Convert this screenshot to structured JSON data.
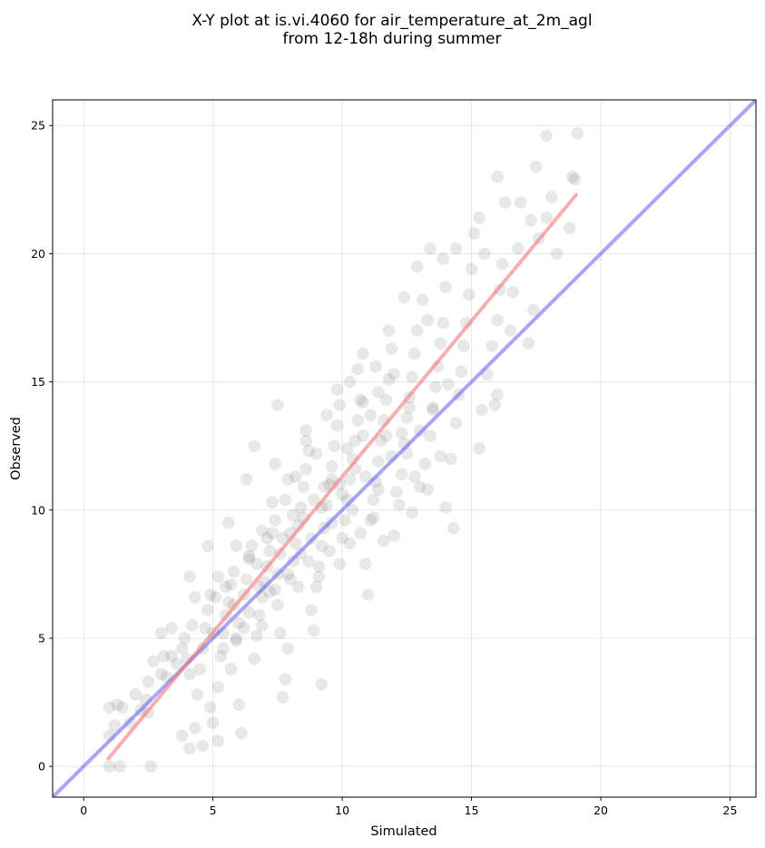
{
  "chart_data": {
    "type": "scatter",
    "title": [
      "X-Y plot at is.vi.4060 for air_temperature_at_2m_agl",
      "from 12-18h during summer"
    ],
    "xlabel": "Simulated",
    "ylabel": "Observed",
    "xlim": [
      -1.2,
      26
    ],
    "ylim": [
      -1.2,
      26
    ],
    "xticks": [
      0,
      5,
      10,
      15,
      20,
      25
    ],
    "yticks": [
      0,
      5,
      10,
      15,
      20,
      25
    ],
    "grid": true,
    "point_color": "#000000",
    "point_opacity": 0.09,
    "points": [
      [
        1.0,
        0.0
      ],
      [
        1.4,
        0.0
      ],
      [
        2.6,
        0.0
      ],
      [
        1.0,
        1.2
      ],
      [
        1.2,
        1.6
      ],
      [
        1.3,
        2.4
      ],
      [
        1.5,
        2.3
      ],
      [
        1.8,
        1.7
      ],
      [
        2.0,
        2.8
      ],
      [
        2.2,
        2.2
      ],
      [
        1.0,
        2.3
      ],
      [
        2.4,
        2.6
      ],
      [
        2.5,
        2.1
      ],
      [
        2.5,
        3.3
      ],
      [
        2.7,
        4.1
      ],
      [
        3.0,
        3.6
      ],
      [
        3.1,
        4.3
      ],
      [
        3.2,
        3.5
      ],
      [
        3.4,
        4.3
      ],
      [
        3.6,
        4.0
      ],
      [
        3.0,
        5.2
      ],
      [
        3.4,
        5.4
      ],
      [
        3.8,
        4.6
      ],
      [
        3.9,
        5.0
      ],
      [
        4.0,
        4.2
      ],
      [
        4.1,
        3.6
      ],
      [
        4.2,
        5.5
      ],
      [
        4.3,
        6.6
      ],
      [
        4.1,
        7.4
      ],
      [
        3.8,
        1.2
      ],
      [
        4.1,
        0.7
      ],
      [
        4.3,
        1.5
      ],
      [
        4.6,
        0.8
      ],
      [
        4.4,
        2.8
      ],
      [
        4.5,
        3.8
      ],
      [
        4.6,
        4.6
      ],
      [
        4.7,
        5.4
      ],
      [
        4.8,
        6.1
      ],
      [
        4.9,
        6.7
      ],
      [
        4.9,
        2.3
      ],
      [
        5.0,
        1.7
      ],
      [
        5.2,
        1.0
      ],
      [
        5.2,
        3.1
      ],
      [
        5.3,
        4.3
      ],
      [
        5.4,
        5.2
      ],
      [
        5.5,
        5.9
      ],
      [
        5.6,
        6.4
      ],
      [
        5.7,
        7.1
      ],
      [
        5.8,
        7.6
      ],
      [
        5.6,
        9.5
      ],
      [
        5.7,
        3.8
      ],
      [
        5.9,
        4.9
      ],
      [
        6.0,
        5.6
      ],
      [
        6.0,
        2.4
      ],
      [
        6.1,
        1.3
      ],
      [
        6.2,
        6.7
      ],
      [
        6.3,
        7.3
      ],
      [
        6.4,
        8.1
      ],
      [
        6.5,
        8.6
      ],
      [
        6.6,
        4.2
      ],
      [
        6.7,
        5.1
      ],
      [
        6.8,
        5.9
      ],
      [
        6.9,
        6.6
      ],
      [
        6.6,
        12.5
      ],
      [
        6.3,
        11.2
      ],
      [
        7.0,
        7.2
      ],
      [
        7.1,
        7.8
      ],
      [
        7.2,
        8.4
      ],
      [
        7.3,
        9.1
      ],
      [
        7.4,
        9.6
      ],
      [
        7.5,
        6.3
      ],
      [
        7.6,
        5.2
      ],
      [
        7.7,
        2.7
      ],
      [
        7.8,
        3.4
      ],
      [
        7.9,
        4.6
      ],
      [
        7.8,
        10.4
      ],
      [
        7.9,
        11.2
      ],
      [
        7.5,
        14.1
      ],
      [
        7.4,
        11.8
      ],
      [
        8.0,
        7.3
      ],
      [
        8.1,
        8.0
      ],
      [
        8.2,
        8.7
      ],
      [
        8.3,
        9.4
      ],
      [
        8.4,
        10.1
      ],
      [
        8.5,
        10.9
      ],
      [
        8.6,
        11.6
      ],
      [
        8.7,
        12.3
      ],
      [
        8.6,
        13.1
      ],
      [
        8.8,
        6.1
      ],
      [
        8.9,
        5.3
      ],
      [
        9.0,
        7.0
      ],
      [
        9.1,
        7.8
      ],
      [
        9.2,
        8.6
      ],
      [
        9.3,
        9.3
      ],
      [
        9.2,
        3.2
      ],
      [
        9.4,
        10.2
      ],
      [
        9.5,
        11.0
      ],
      [
        9.6,
        11.7
      ],
      [
        9.7,
        12.5
      ],
      [
        9.8,
        13.3
      ],
      [
        9.9,
        14.1
      ],
      [
        10.0,
        8.9
      ],
      [
        10.1,
        9.6
      ],
      [
        10.2,
        10.4
      ],
      [
        10.3,
        11.2
      ],
      [
        10.4,
        12.0
      ],
      [
        10.5,
        12.7
      ],
      [
        10.6,
        13.5
      ],
      [
        10.7,
        14.3
      ],
      [
        10.6,
        15.5
      ],
      [
        10.8,
        16.1
      ],
      [
        10.9,
        7.9
      ],
      [
        11.0,
        6.7
      ],
      [
        11.1,
        9.6
      ],
      [
        11.2,
        10.4
      ],
      [
        11.3,
        11.1
      ],
      [
        11.4,
        11.9
      ],
      [
        11.5,
        12.7
      ],
      [
        11.6,
        13.5
      ],
      [
        11.7,
        14.3
      ],
      [
        11.8,
        15.1
      ],
      [
        11.9,
        16.3
      ],
      [
        12.0,
        9.0
      ],
      [
        12.2,
        10.2
      ],
      [
        12.3,
        11.4
      ],
      [
        12.4,
        12.6
      ],
      [
        12.5,
        13.6
      ],
      [
        12.6,
        14.4
      ],
      [
        12.7,
        15.2
      ],
      [
        12.8,
        16.1
      ],
      [
        12.9,
        17.0
      ],
      [
        13.1,
        18.2
      ],
      [
        12.7,
        9.9
      ],
      [
        13.0,
        10.9
      ],
      [
        13.2,
        11.8
      ],
      [
        13.4,
        12.9
      ],
      [
        13.5,
        13.9
      ],
      [
        13.6,
        14.8
      ],
      [
        13.7,
        15.6
      ],
      [
        13.8,
        16.5
      ],
      [
        13.9,
        17.3
      ],
      [
        13.4,
        20.2
      ],
      [
        13.9,
        19.8
      ],
      [
        14.3,
        9.3
      ],
      [
        14.0,
        10.1
      ],
      [
        14.2,
        12.0
      ],
      [
        14.4,
        13.4
      ],
      [
        14.5,
        14.5
      ],
      [
        14.6,
        15.4
      ],
      [
        14.7,
        16.4
      ],
      [
        14.8,
        17.3
      ],
      [
        14.9,
        18.4
      ],
      [
        15.0,
        19.4
      ],
      [
        15.1,
        20.8
      ],
      [
        15.3,
        21.4
      ],
      [
        15.5,
        20.0
      ],
      [
        15.3,
        12.4
      ],
      [
        15.4,
        13.9
      ],
      [
        15.6,
        15.3
      ],
      [
        15.8,
        16.4
      ],
      [
        16.0,
        17.4
      ],
      [
        16.1,
        18.6
      ],
      [
        16.2,
        19.6
      ],
      [
        16.0,
        23.0
      ],
      [
        16.3,
        22.0
      ],
      [
        15.9,
        14.1
      ],
      [
        16.0,
        14.5
      ],
      [
        16.5,
        17.0
      ],
      [
        16.6,
        18.5
      ],
      [
        16.8,
        20.2
      ],
      [
        16.9,
        22.0
      ],
      [
        17.2,
        16.5
      ],
      [
        17.4,
        17.8
      ],
      [
        17.6,
        20.6
      ],
      [
        17.5,
        23.4
      ],
      [
        17.9,
        24.6
      ],
      [
        18.1,
        22.2
      ],
      [
        18.3,
        20.0
      ],
      [
        18.8,
        21.0
      ],
      [
        19.0,
        22.9
      ],
      [
        19.1,
        24.7
      ],
      [
        18.9,
        23.0
      ],
      [
        17.9,
        21.4
      ],
      [
        17.3,
        21.3
      ],
      [
        5.9,
        8.6
      ],
      [
        6.4,
        8.2
      ],
      [
        6.8,
        7.0
      ],
      [
        7.2,
        6.8
      ],
      [
        7.6,
        8.3
      ],
      [
        8.1,
        9.8
      ],
      [
        8.5,
        9.7
      ],
      [
        8.9,
        10.4
      ],
      [
        9.3,
        10.9
      ],
      [
        9.6,
        11.2
      ],
      [
        9.9,
        11.0
      ],
      [
        10.2,
        12.4
      ],
      [
        10.5,
        11.6
      ],
      [
        10.8,
        12.9
      ],
      [
        11.1,
        13.7
      ],
      [
        11.4,
        14.6
      ],
      [
        11.7,
        12.9
      ],
      [
        12.0,
        15.3
      ],
      [
        12.3,
        13.0
      ],
      [
        12.6,
        14.0
      ],
      [
        4.8,
        8.6
      ],
      [
        5.2,
        7.4
      ],
      [
        5.5,
        7.0
      ],
      [
        6.9,
        9.2
      ],
      [
        7.3,
        10.3
      ],
      [
        7.7,
        8.9
      ],
      [
        8.2,
        11.3
      ],
      [
        8.6,
        12.7
      ],
      [
        9.0,
        12.2
      ],
      [
        9.4,
        13.7
      ],
      [
        9.8,
        14.7
      ],
      [
        10.3,
        15.0
      ],
      [
        10.8,
        14.2
      ],
      [
        11.3,
        15.6
      ],
      [
        11.8,
        17.0
      ],
      [
        12.4,
        18.3
      ],
      [
        13.3,
        17.4
      ],
      [
        12.9,
        19.5
      ],
      [
        14.0,
        18.7
      ],
      [
        14.4,
        20.2
      ],
      [
        5.1,
        6.6
      ],
      [
        5.8,
        6.3
      ],
      [
        6.2,
        5.4
      ],
      [
        6.7,
        7.9
      ],
      [
        7.1,
        8.9
      ],
      [
        7.5,
        7.5
      ],
      [
        8.0,
        9.1
      ],
      [
        8.4,
        8.3
      ],
      [
        8.8,
        8.9
      ],
      [
        9.2,
        10.1
      ],
      [
        9.6,
        9.5
      ],
      [
        10.0,
        10.6
      ],
      [
        10.4,
        10.0
      ],
      [
        10.9,
        11.3
      ],
      [
        11.4,
        10.8
      ],
      [
        11.9,
        12.1
      ],
      [
        12.5,
        12.2
      ],
      [
        13.0,
        13.1
      ],
      [
        13.5,
        14.0
      ],
      [
        14.1,
        14.9
      ],
      [
        5.0,
        5.2
      ],
      [
        5.4,
        4.6
      ],
      [
        5.9,
        5.0
      ],
      [
        6.4,
        6.0
      ],
      [
        6.9,
        5.5
      ],
      [
        7.4,
        6.9
      ],
      [
        7.9,
        7.5
      ],
      [
        8.3,
        7.0
      ],
      [
        8.7,
        8.0
      ],
      [
        9.1,
        7.4
      ],
      [
        9.5,
        8.4
      ],
      [
        9.9,
        7.9
      ],
      [
        10.3,
        8.7
      ],
      [
        10.7,
        9.1
      ],
      [
        11.2,
        9.7
      ],
      [
        11.6,
        8.8
      ],
      [
        12.1,
        10.7
      ],
      [
        12.8,
        11.3
      ],
      [
        13.3,
        10.8
      ],
      [
        13.8,
        12.1
      ]
    ],
    "fit_line": {
      "color": "#f0787a",
      "opacity": 0.6,
      "x": [
        0.95,
        19.05
      ],
      "y": [
        0.3,
        22.3
      ]
    },
    "identity_line": {
      "color": "#5050ee",
      "opacity": 0.5,
      "x": [
        -1.2,
        26
      ],
      "y": [
        -1.2,
        26
      ]
    }
  }
}
